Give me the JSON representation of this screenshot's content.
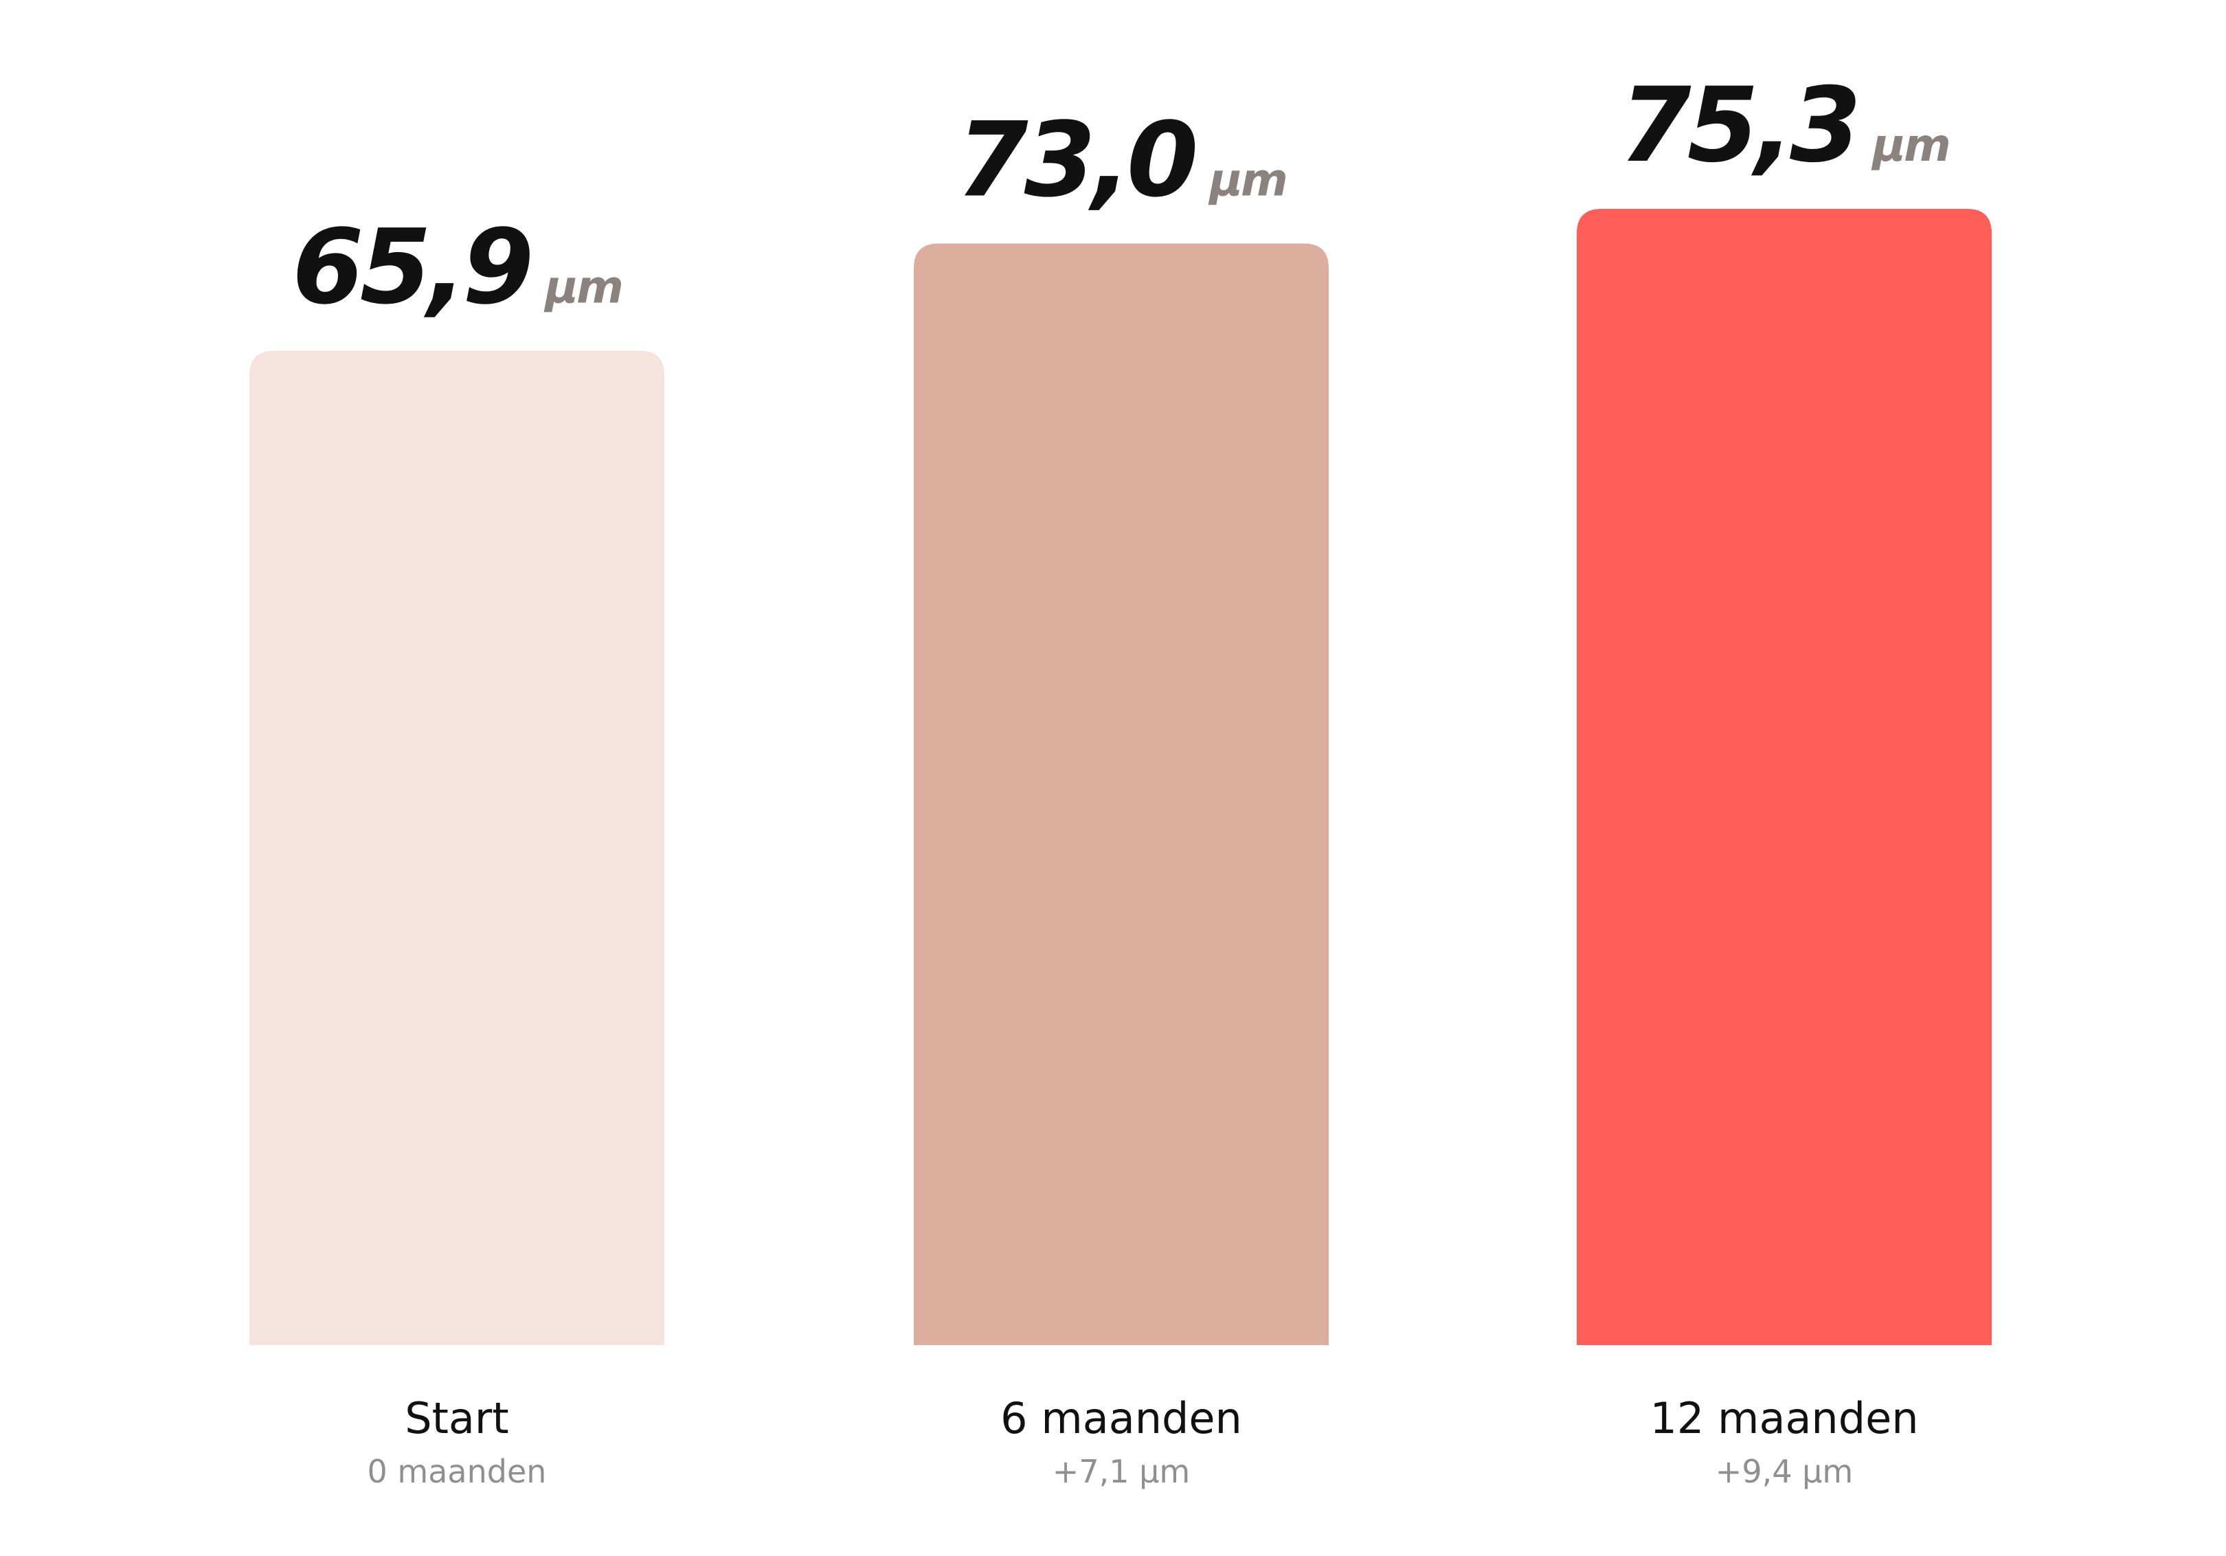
{
  "chart_data": {
    "type": "bar",
    "categories": [
      "Start",
      "6 maanden",
      "12 maanden"
    ],
    "subtitles": [
      "0 maanden",
      "+7,1 µm",
      "+9,4 µm"
    ],
    "values": [
      65.9,
      73.0,
      75.3
    ],
    "value_labels": [
      "65,9",
      "73,0",
      "75,3"
    ],
    "unit": "µm",
    "colors": [
      "#f6e3dd",
      "#ddad9e",
      "#ff5f58"
    ],
    "title": "",
    "xlabel": "",
    "ylabel": "",
    "ylim": [
      0,
      75.3
    ],
    "grid": false,
    "legend": "none"
  }
}
